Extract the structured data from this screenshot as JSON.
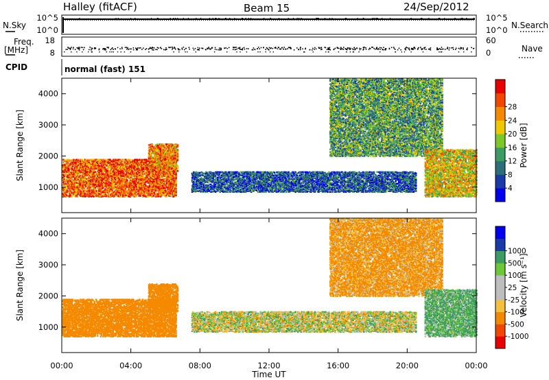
{
  "header": {
    "station": "Halley (fitACF)",
    "beam": "Beam 15",
    "date": "24/Sep/2012"
  },
  "strips": {
    "nsky_label": "N.Sky",
    "nsearch_label": "N.Search",
    "freq_label_line1": "Freq.",
    "freq_label_line2": "[MHz]",
    "nave_label": "Nave",
    "cpid_label": "CPID",
    "cpid_value": "normal (fast) 151",
    "noise_ticks_left": [
      "10^5",
      "10^0"
    ],
    "noise_ticks_right": [
      "10^5",
      "10^0"
    ],
    "freq_ticks": [
      "18",
      "8"
    ],
    "nave_ticks": [
      "60",
      "0"
    ]
  },
  "colors": {
    "power_scale": [
      "#0000ee",
      "#1a3aa8",
      "#2e6e78",
      "#3c9c64",
      "#7cc828",
      "#f0c800",
      "#f58a00",
      "#f04800",
      "#e80000"
    ],
    "velocity_scale": [
      "#e80000",
      "#f04800",
      "#f58a00",
      "#f5c040",
      "#bebebe",
      "#bebebe",
      "#6cc838",
      "#3c9c64",
      "#1a3aa8",
      "#0000ee"
    ],
    "ground_scatter": "#c0c0c0"
  },
  "chart_data": [
    {
      "type": "heatmap",
      "panel": "power",
      "ylabel": "Slant Range [km]",
      "ylim": [
        180,
        4500
      ],
      "yticks": [
        "1000",
        "2000",
        "3000",
        "4000"
      ],
      "xlim": [
        "00:00",
        "24:00"
      ],
      "colorbar_label": "Power [dB]",
      "colorbar_ticks": [
        "4",
        "8",
        "12",
        "16",
        "20",
        "24",
        "28"
      ],
      "colorbar_range": [
        0,
        30
      ],
      "scatter_regions": [
        {
          "time_start": 0.0,
          "time_end": 6.6,
          "range_min": 700,
          "range_max": 1900,
          "value": 24
        },
        {
          "time_start": 5.0,
          "time_end": 6.7,
          "range_min": 1500,
          "range_max": 2400,
          "value": 22
        },
        {
          "time_start": 7.5,
          "time_end": 20.5,
          "range_min": 850,
          "range_max": 1500,
          "value": 7
        },
        {
          "time_start": 15.5,
          "time_end": 22.0,
          "range_min": 2000,
          "range_max": 4500,
          "value": 12
        },
        {
          "time_start": 21.0,
          "time_end": 24.0,
          "range_min": 700,
          "range_max": 2200,
          "value": 18
        }
      ]
    },
    {
      "type": "heatmap",
      "panel": "velocity",
      "ylabel": "Slant Range [km]",
      "xlabel": "Time UT",
      "ylim": [
        180,
        4500
      ],
      "yticks": [
        "1000",
        "2000",
        "3000",
        "4000"
      ],
      "xticks": [
        "00:00",
        "04:00",
        "08:00",
        "12:00",
        "16:00",
        "20:00",
        "00:00"
      ],
      "colorbar_label": "Velocity [m s⁻¹]",
      "colorbar_ticks": [
        "-1000",
        "-500",
        "-100",
        "-25",
        "25",
        "100",
        "500",
        "1000"
      ],
      "scatter_regions": [
        {
          "time_start": 0.0,
          "time_end": 6.6,
          "range_min": 700,
          "range_max": 1900,
          "value": -300
        },
        {
          "time_start": 5.0,
          "time_end": 6.7,
          "range_min": 1500,
          "range_max": 2400,
          "value": -250
        },
        {
          "time_start": 7.5,
          "time_end": 20.5,
          "range_min": 850,
          "range_max": 1500,
          "value": 0
        },
        {
          "time_start": 15.5,
          "time_end": 22.0,
          "range_min": 2000,
          "range_max": 4500,
          "value": -150
        },
        {
          "time_start": 21.0,
          "time_end": 24.0,
          "range_min": 700,
          "range_max": 2200,
          "value": 120
        }
      ]
    }
  ]
}
